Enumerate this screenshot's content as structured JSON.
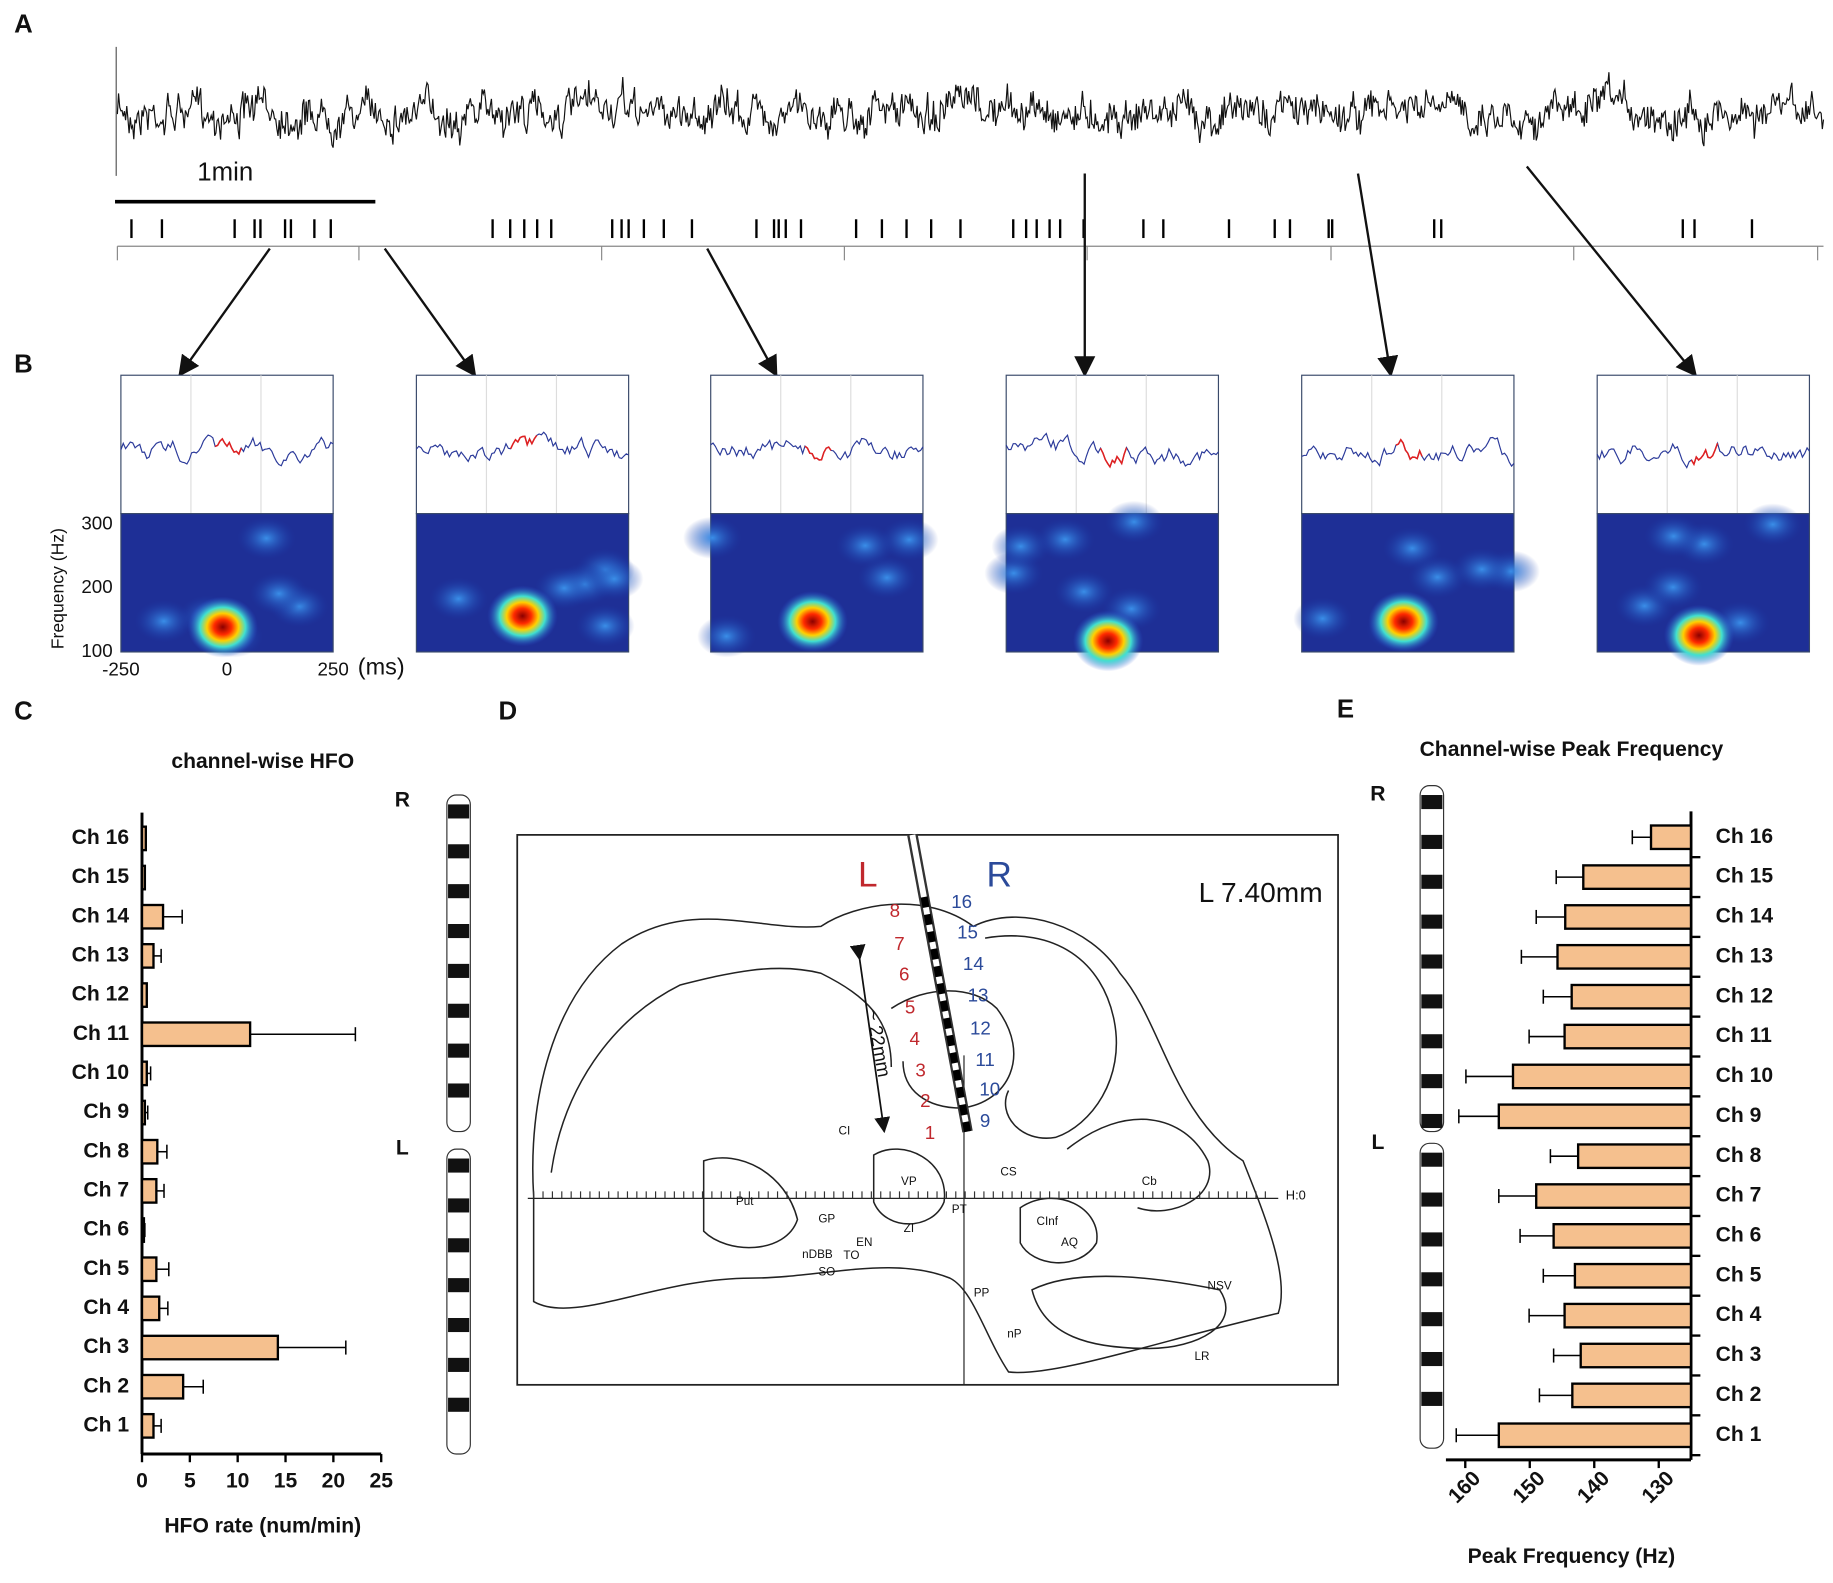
{
  "panels": {
    "a": "A",
    "b": "B",
    "c": "C",
    "d": "D",
    "e": "E"
  },
  "trace": {
    "scale_bar": "1min"
  },
  "spectrogram": {
    "ylabel": "Frequency (Hz)",
    "ylim": [
      100,
      317
    ],
    "yticks": [
      100,
      200,
      300
    ],
    "xlim": [
      -250,
      250
    ],
    "xticks": [
      -250,
      0,
      250
    ],
    "xunit": "(ms)"
  },
  "probe_labels": {
    "right": "R",
    "left": "L"
  },
  "atlas": {
    "left": "L",
    "right": "R",
    "section": "L 7.40mm",
    "depth": "~ 22mm",
    "horizon": "H:0",
    "left_channels": [
      "1",
      "2",
      "3",
      "4",
      "5",
      "6",
      "7",
      "8"
    ],
    "right_channels": [
      "9",
      "10",
      "11",
      "12",
      "13",
      "14",
      "15",
      "16"
    ],
    "regions": [
      "CI",
      "VP",
      "GP",
      "Put",
      "ZI",
      "PT",
      "CS",
      "Cb",
      "AQ",
      "CInf",
      "NSV",
      "LR",
      "PP",
      "nP",
      "SO",
      "EN",
      "TO",
      "nDBB"
    ]
  },
  "chart_data": [
    {
      "type": "bar",
      "orientation": "horizontal",
      "title": "channel-wise HFO",
      "xlabel": "HFO rate (num/min)",
      "categories": [
        "Ch 1",
        "Ch 2",
        "Ch 3",
        "Ch 4",
        "Ch 5",
        "Ch 6",
        "Ch 7",
        "Ch 8",
        "Ch 9",
        "Ch 10",
        "Ch 11",
        "Ch 12",
        "Ch 13",
        "Ch 14",
        "Ch 15",
        "Ch 16"
      ],
      "values": [
        1.2,
        4.3,
        14.2,
        1.8,
        1.5,
        0.2,
        1.5,
        1.6,
        0.3,
        0.5,
        11.3,
        0.5,
        1.2,
        2.2,
        0.3,
        0.4
      ],
      "errors": [
        0.8,
        2.1,
        7.1,
        0.9,
        1.3,
        0.1,
        0.8,
        1.0,
        0.3,
        0.4,
        11.0,
        0.0,
        0.8,
        2.0,
        0.0,
        0.0
      ],
      "color": "#f5c08e",
      "xlim": [
        0,
        25
      ],
      "xticks": [
        0,
        5,
        10,
        15,
        20,
        25
      ]
    },
    {
      "type": "bar",
      "orientation": "horizontal",
      "title": "Channel-wise Peak Frequency",
      "xlabel": "Peak Frequency (Hz)",
      "categories": [
        "Ch 1",
        "Ch 2",
        "Ch 3",
        "Ch 4",
        "Ch 5",
        "Ch 6",
        "Ch 7",
        "Ch 8",
        "Ch 9",
        "Ch 10",
        "Ch 11",
        "Ch 12",
        "Ch 13",
        "Ch 14",
        "Ch 15",
        "Ch 16"
      ],
      "values": [
        154.8,
        143.4,
        142.1,
        144.6,
        143.0,
        146.3,
        149.0,
        142.5,
        154.8,
        152.6,
        144.6,
        143.5,
        145.7,
        144.5,
        141.7,
        131.2
      ],
      "errors": [
        6.6,
        5.1,
        4.2,
        5.5,
        4.9,
        5.2,
        5.8,
        4.3,
        6.2,
        7.3,
        5.5,
        4.4,
        5.6,
        4.5,
        4.2,
        2.9
      ],
      "color": "#f5c08e",
      "xlim": [
        163,
        125
      ],
      "xticks": [
        160,
        150,
        140,
        130
      ]
    }
  ]
}
